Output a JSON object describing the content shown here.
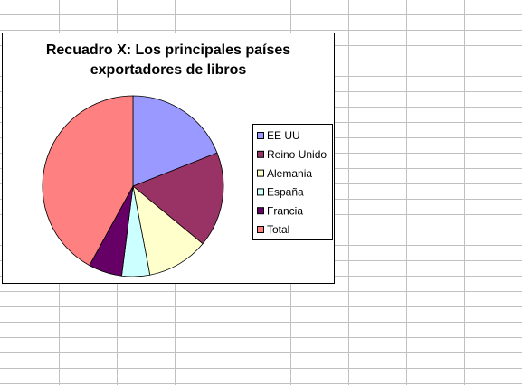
{
  "chart_data": {
    "type": "pie",
    "title": "Recuadro X: Los principales países exportadores de libros",
    "categories": [
      "EE UU",
      "Reino Unido",
      "Alemania",
      "España",
      "Francia",
      "Total"
    ],
    "values": [
      19,
      17,
      11,
      5,
      6,
      42
    ],
    "colors": [
      "#9999ff",
      "#993366",
      "#ffffcc",
      "#ccffff",
      "#660066",
      "#ff8080"
    ],
    "legend": "right"
  }
}
